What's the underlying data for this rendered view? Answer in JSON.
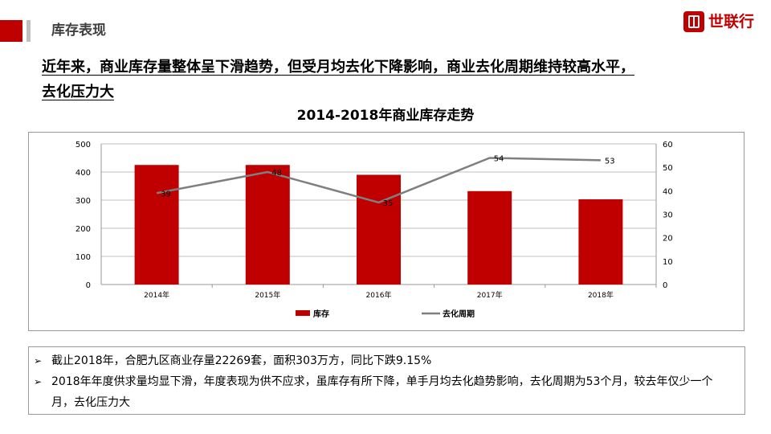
{
  "header": {
    "section_title": "库存表现",
    "logo_text": "世联行"
  },
  "headline": {
    "line1": "近年来，商业库存量整体呈下滑趋势，但受月均去化下降影响，商业去化周期维持较高水平，",
    "line2": "去化压力大"
  },
  "chart_data": {
    "type": "bar+line",
    "title": "2014-2018年商业库存走势",
    "categories": [
      "2014年",
      "2015年",
      "2016年",
      "2017年",
      "2018年"
    ],
    "series": [
      {
        "name": "库存",
        "type": "bar",
        "axis": "left",
        "values": [
          425,
          425,
          390,
          332,
          303
        ],
        "color": "#c00000"
      },
      {
        "name": "去化周期",
        "type": "line",
        "axis": "right",
        "values": [
          39,
          48,
          35,
          54,
          53
        ],
        "color": "#7f7f7f"
      }
    ],
    "y_left": {
      "min": 0,
      "max": 500,
      "ticks": [
        "0",
        "100",
        "200",
        "300",
        "400",
        "500"
      ]
    },
    "y_right": {
      "min": 0,
      "max": 60,
      "ticks": [
        "0",
        "10",
        "20",
        "30",
        "40",
        "50",
        "60"
      ]
    },
    "line_labels": [
      "39",
      "48",
      "35",
      "54",
      "53"
    ],
    "grid": true,
    "legend": "bottom-center"
  },
  "notes": {
    "bullet": "➢",
    "items": [
      "截止2018年，合肥九区商业存量22269套，面积303万方，同比下跌9.15%",
      "2018年年度供求量均显下滑，年度表现为供不应求，虽库存有所下降，单手月均去化趋势影响，去化周期为53个月，较去年仅少一个月，去化压力大"
    ]
  }
}
